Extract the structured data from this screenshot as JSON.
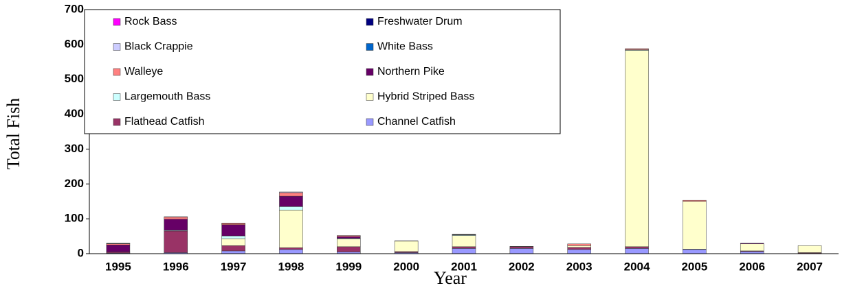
{
  "chart_data": {
    "type": "stacked_bar",
    "x_label": "Year",
    "y_label": "Total Fish",
    "categories": [
      "1995",
      "1996",
      "1997",
      "1998",
      "1999",
      "2000",
      "2001",
      "2002",
      "2003",
      "2004",
      "2005",
      "2006",
      "2007"
    ],
    "series": [
      {
        "name": "Channel Catfish",
        "color": "#9999ff",
        "values": [
          2,
          3,
          8,
          12,
          5,
          3,
          15,
          15,
          12,
          15,
          12,
          6,
          1
        ]
      },
      {
        "name": "Flathead Catfish",
        "color": "#993366",
        "values": [
          3,
          62,
          15,
          5,
          15,
          3,
          5,
          5,
          6,
          5,
          1,
          2,
          2
        ]
      },
      {
        "name": "Hybrid Striped Bass",
        "color": "#ffffcc",
        "values": [
          0,
          0,
          20,
          108,
          22,
          30,
          32,
          0,
          5,
          563,
          137,
          20,
          20
        ]
      },
      {
        "name": "Largemouth Bass",
        "color": "#ccffff",
        "values": [
          0,
          2,
          8,
          10,
          2,
          0,
          2,
          0,
          0,
          2,
          0,
          0,
          0
        ]
      },
      {
        "name": "Northern Pike",
        "color": "#660066",
        "values": [
          20,
          32,
          32,
          30,
          5,
          0,
          1,
          0,
          0,
          0,
          0,
          2,
          0
        ]
      },
      {
        "name": "Walleye",
        "color": "#ff8080",
        "values": [
          3,
          6,
          4,
          10,
          3,
          1,
          1,
          1,
          5,
          3,
          3,
          0,
          0
        ]
      },
      {
        "name": "White Bass",
        "color": "#0066cc",
        "values": [
          0,
          0,
          0,
          0,
          0,
          0,
          0,
          0,
          0,
          0,
          0,
          0,
          0
        ]
      },
      {
        "name": "Black Crappie",
        "color": "#ccccff",
        "values": [
          1,
          1,
          1,
          2,
          0,
          0,
          0,
          0,
          0,
          0,
          0,
          0,
          0
        ]
      },
      {
        "name": "Freshwater Drum",
        "color": "#000080",
        "values": [
          1,
          0,
          0,
          0,
          0,
          0,
          0,
          0,
          0,
          0,
          0,
          0,
          0
        ]
      },
      {
        "name": "Rock Bass",
        "color": "#ff00ff",
        "values": [
          0,
          0,
          0,
          0,
          0,
          0,
          0,
          0,
          0,
          0,
          0,
          0,
          0
        ]
      }
    ],
    "ylim": [
      0,
      700
    ],
    "yticks": [
      0,
      100,
      200,
      300,
      400,
      500,
      600,
      700
    ]
  }
}
